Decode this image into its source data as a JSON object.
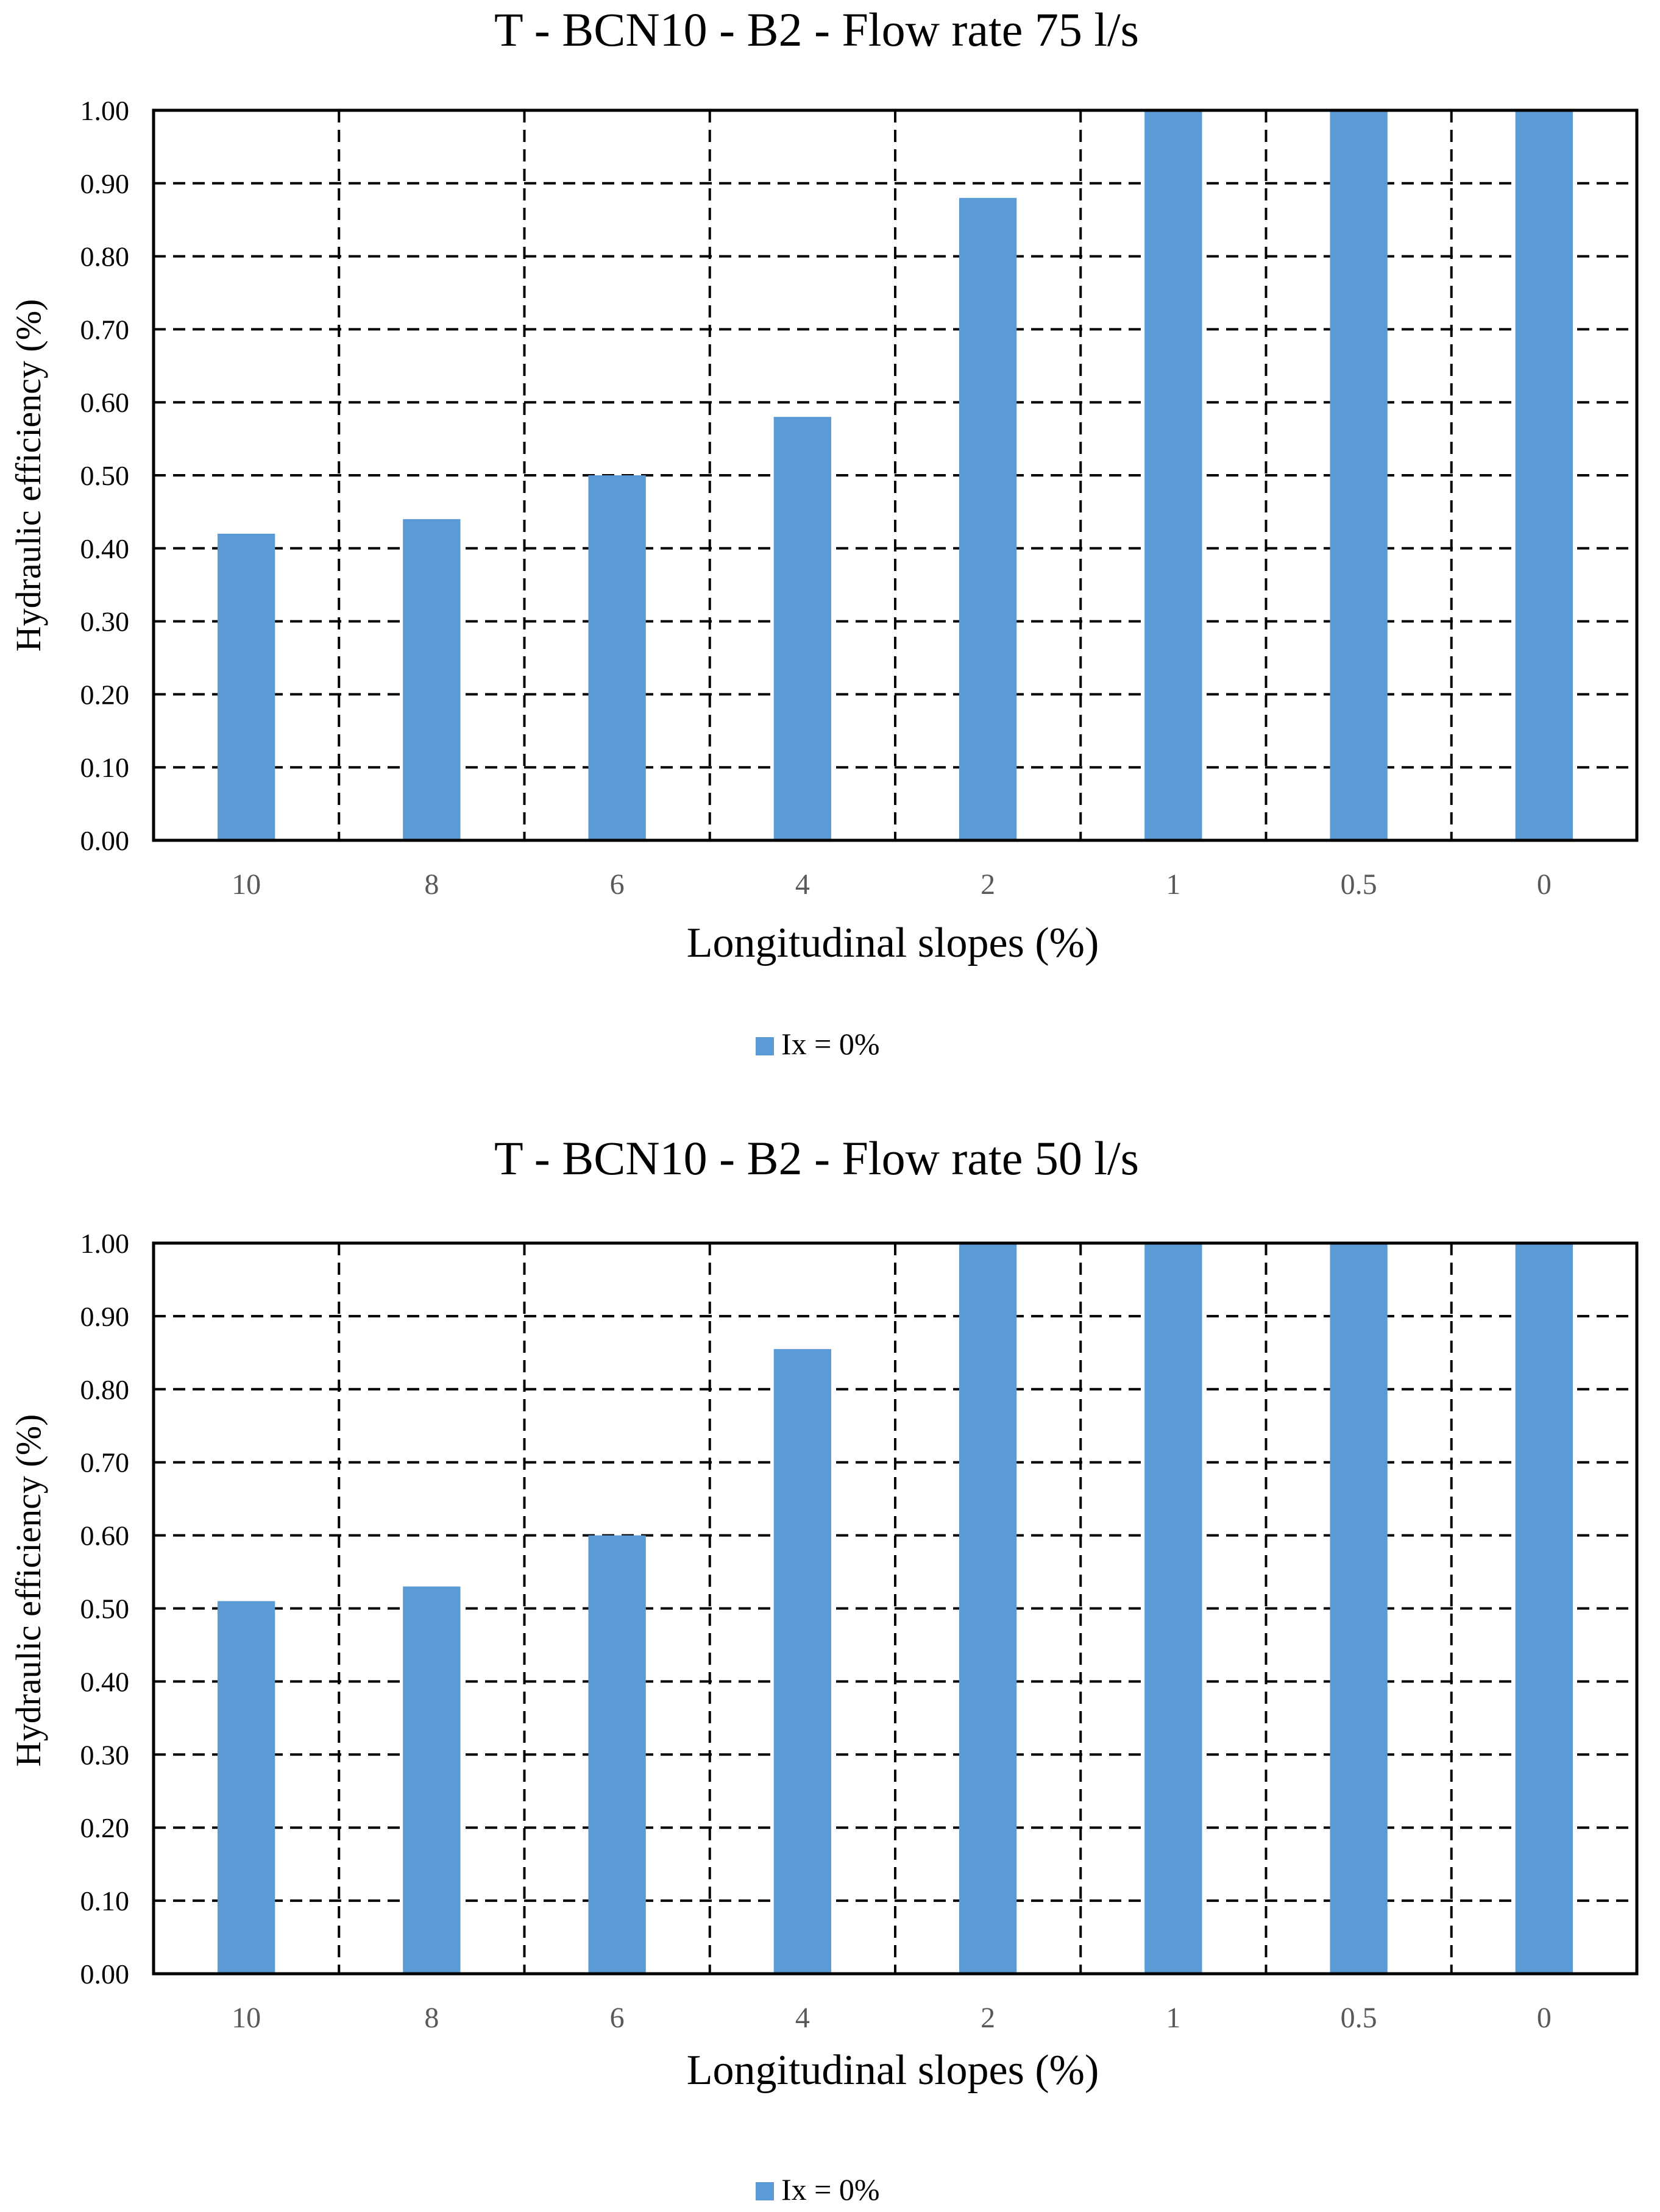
{
  "chart_data": [
    {
      "type": "bar",
      "title": "T - BCN10 - B2 - Flow rate 75 l/s",
      "xlabel": "Longitudinal slopes (%)",
      "ylabel": "Hydraulic efficiency  (%)",
      "categories": [
        "10",
        "8",
        "6",
        "4",
        "2",
        "1",
        "0.5",
        "0"
      ],
      "series": [
        {
          "name": "Ix = 0%",
          "values": [
            0.42,
            0.44,
            0.5,
            0.58,
            0.88,
            1.0,
            1.0,
            1.0
          ]
        }
      ],
      "ylim": [
        0,
        1
      ],
      "yticks": [
        "0.00",
        "0.10",
        "0.20",
        "0.30",
        "0.40",
        "0.50",
        "0.60",
        "0.70",
        "0.80",
        "0.90",
        "1.00"
      ],
      "grid": true,
      "legend_position": "bottom",
      "colors": {
        "bar": "#5b9bd5",
        "grid": "#000000",
        "axis_text": "#595959"
      }
    },
    {
      "type": "bar",
      "title": "T - BCN10 - B2 - Flow rate 50 l/s",
      "xlabel": "Longitudinal slopes (%)",
      "ylabel": "Hydraulic efficiency  (%)",
      "categories": [
        "10",
        "8",
        "6",
        "4",
        "2",
        "1",
        "0.5",
        "0"
      ],
      "series": [
        {
          "name": "Ix = 0%",
          "values": [
            0.51,
            0.53,
            0.6,
            0.855,
            1.0,
            1.0,
            1.0,
            1.0
          ]
        }
      ],
      "ylim": [
        0,
        1
      ],
      "yticks": [
        "0.00",
        "0.10",
        "0.20",
        "0.30",
        "0.40",
        "0.50",
        "0.60",
        "0.70",
        "0.80",
        "0.90",
        "1.00"
      ],
      "grid": true,
      "legend_position": "bottom",
      "colors": {
        "bar": "#5b9bd5",
        "grid": "#000000",
        "axis_text": "#595959"
      }
    }
  ]
}
